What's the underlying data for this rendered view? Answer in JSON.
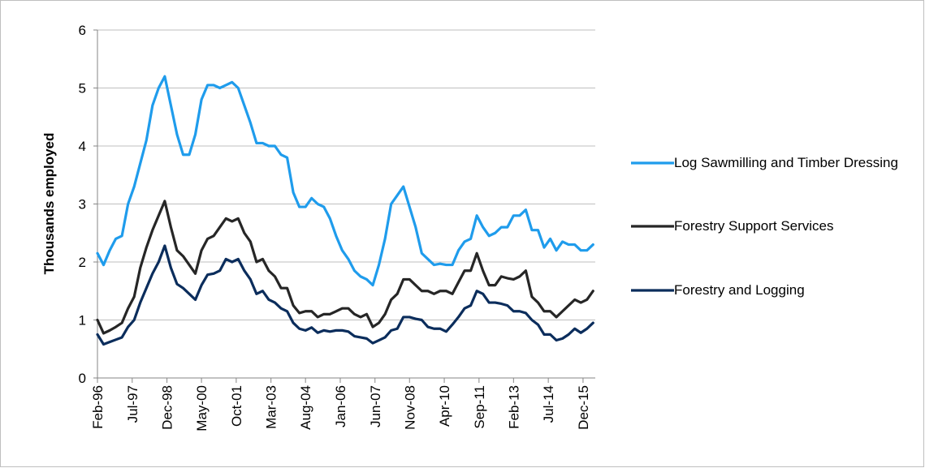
{
  "chart_data": {
    "type": "line",
    "y_label": "Thousands employed",
    "x": [
      1996.08,
      1996.33,
      1996.58,
      1996.83,
      1997.08,
      1997.33,
      1997.58,
      1997.83,
      1998.08,
      1998.33,
      1998.58,
      1998.83,
      1999.08,
      1999.33,
      1999.58,
      1999.83,
      2000.08,
      2000.33,
      2000.58,
      2000.83,
      2001.08,
      2001.33,
      2001.58,
      2001.83,
      2002.08,
      2002.33,
      2002.58,
      2002.83,
      2003.08,
      2003.33,
      2003.58,
      2003.83,
      2004.08,
      2004.33,
      2004.58,
      2004.83,
      2005.08,
      2005.33,
      2005.58,
      2005.83,
      2006.08,
      2006.33,
      2006.58,
      2006.83,
      2007.08,
      2007.33,
      2007.58,
      2007.83,
      2008.08,
      2008.33,
      2008.58,
      2008.83,
      2009.08,
      2009.33,
      2009.58,
      2009.83,
      2010.08,
      2010.33,
      2010.58,
      2010.83,
      2011.08,
      2011.33,
      2011.58,
      2011.83,
      2012.08,
      2012.33,
      2012.58,
      2012.83,
      2013.08,
      2013.33,
      2013.58,
      2013.83,
      2014.08,
      2014.33,
      2014.58,
      2014.83,
      2015.08,
      2015.33,
      2015.58,
      2015.83,
      2016.08,
      2016.33
    ],
    "xlim": [
      1996.08,
      2016.42
    ],
    "xticks": [
      {
        "value": 1996.08,
        "label": "Feb-96"
      },
      {
        "value": 1997.5,
        "label": "Jul-97"
      },
      {
        "value": 1998.92,
        "label": "Dec-98"
      },
      {
        "value": 2000.33,
        "label": "May-00"
      },
      {
        "value": 2001.75,
        "label": "Oct-01"
      },
      {
        "value": 2003.17,
        "label": "Mar-03"
      },
      {
        "value": 2004.58,
        "label": "Aug-04"
      },
      {
        "value": 2006.0,
        "label": "Jan-06"
      },
      {
        "value": 2007.42,
        "label": "Jun-07"
      },
      {
        "value": 2008.83,
        "label": "Nov-08"
      },
      {
        "value": 2010.25,
        "label": "Apr-10"
      },
      {
        "value": 2011.67,
        "label": "Sep-11"
      },
      {
        "value": 2013.08,
        "label": "Feb-13"
      },
      {
        "value": 2014.5,
        "label": "Jul-14"
      },
      {
        "value": 2015.92,
        "label": "Dec-15"
      }
    ],
    "ylim": [
      0,
      6
    ],
    "yticks": [
      0,
      1,
      2,
      3,
      4,
      5,
      6
    ],
    "grid": true,
    "series": [
      {
        "name": "Log Sawmilling and Timber Dressing",
        "color": "#1f9cec",
        "values": [
          2.15,
          1.95,
          2.2,
          2.4,
          2.45,
          3.0,
          3.3,
          3.7,
          4.1,
          4.7,
          5.0,
          5.2,
          4.7,
          4.2,
          3.85,
          3.85,
          4.2,
          4.8,
          5.05,
          5.05,
          5.0,
          5.05,
          5.1,
          5.0,
          4.7,
          4.4,
          4.05,
          4.05,
          4.0,
          4.0,
          3.85,
          3.8,
          3.2,
          2.95,
          2.95,
          3.1,
          3.0,
          2.95,
          2.75,
          2.45,
          2.2,
          2.05,
          1.85,
          1.75,
          1.7,
          1.6,
          1.95,
          2.4,
          3.0,
          3.15,
          3.3,
          2.95,
          2.6,
          2.15,
          2.05,
          1.95,
          1.97,
          1.95,
          1.95,
          2.2,
          2.35,
          2.4,
          2.8,
          2.6,
          2.45,
          2.5,
          2.6,
          2.6,
          2.8,
          2.8,
          2.9,
          2.55,
          2.55,
          2.25,
          2.4,
          2.2,
          2.35,
          2.3,
          2.3,
          2.2,
          2.2,
          2.3
        ]
      },
      {
        "name": "Forestry Support Services",
        "color": "#262626",
        "values": [
          1.0,
          0.77,
          0.82,
          0.88,
          0.95,
          1.2,
          1.4,
          1.9,
          2.25,
          2.55,
          2.8,
          3.05,
          2.6,
          2.2,
          2.1,
          1.95,
          1.8,
          2.2,
          2.4,
          2.45,
          2.6,
          2.75,
          2.7,
          2.75,
          2.5,
          2.35,
          2.0,
          2.05,
          1.85,
          1.75,
          1.55,
          1.55,
          1.25,
          1.12,
          1.15,
          1.15,
          1.05,
          1.1,
          1.1,
          1.15,
          1.2,
          1.2,
          1.1,
          1.05,
          1.1,
          0.88,
          0.95,
          1.1,
          1.35,
          1.45,
          1.7,
          1.7,
          1.6,
          1.5,
          1.5,
          1.45,
          1.5,
          1.5,
          1.45,
          1.65,
          1.85,
          1.85,
          2.15,
          1.85,
          1.6,
          1.6,
          1.75,
          1.72,
          1.7,
          1.75,
          1.85,
          1.4,
          1.3,
          1.15,
          1.15,
          1.05,
          1.15,
          1.25,
          1.35,
          1.3,
          1.35,
          1.5
        ]
      },
      {
        "name": "Forestry and Logging",
        "color": "#0b2d5c",
        "values": [
          0.75,
          0.58,
          0.62,
          0.66,
          0.7,
          0.88,
          1.0,
          1.3,
          1.55,
          1.8,
          2.0,
          2.28,
          1.9,
          1.62,
          1.55,
          1.45,
          1.35,
          1.6,
          1.78,
          1.8,
          1.85,
          2.05,
          2.0,
          2.05,
          1.85,
          1.7,
          1.45,
          1.5,
          1.35,
          1.3,
          1.2,
          1.15,
          0.95,
          0.85,
          0.82,
          0.87,
          0.78,
          0.82,
          0.8,
          0.82,
          0.82,
          0.8,
          0.72,
          0.7,
          0.68,
          0.6,
          0.65,
          0.7,
          0.82,
          0.85,
          1.05,
          1.05,
          1.02,
          1.0,
          0.88,
          0.85,
          0.85,
          0.8,
          0.92,
          1.05,
          1.2,
          1.25,
          1.5,
          1.45,
          1.3,
          1.3,
          1.28,
          1.25,
          1.15,
          1.15,
          1.12,
          1.0,
          0.92,
          0.75,
          0.75,
          0.65,
          0.68,
          0.75,
          0.85,
          0.78,
          0.85,
          0.95
        ]
      }
    ]
  }
}
